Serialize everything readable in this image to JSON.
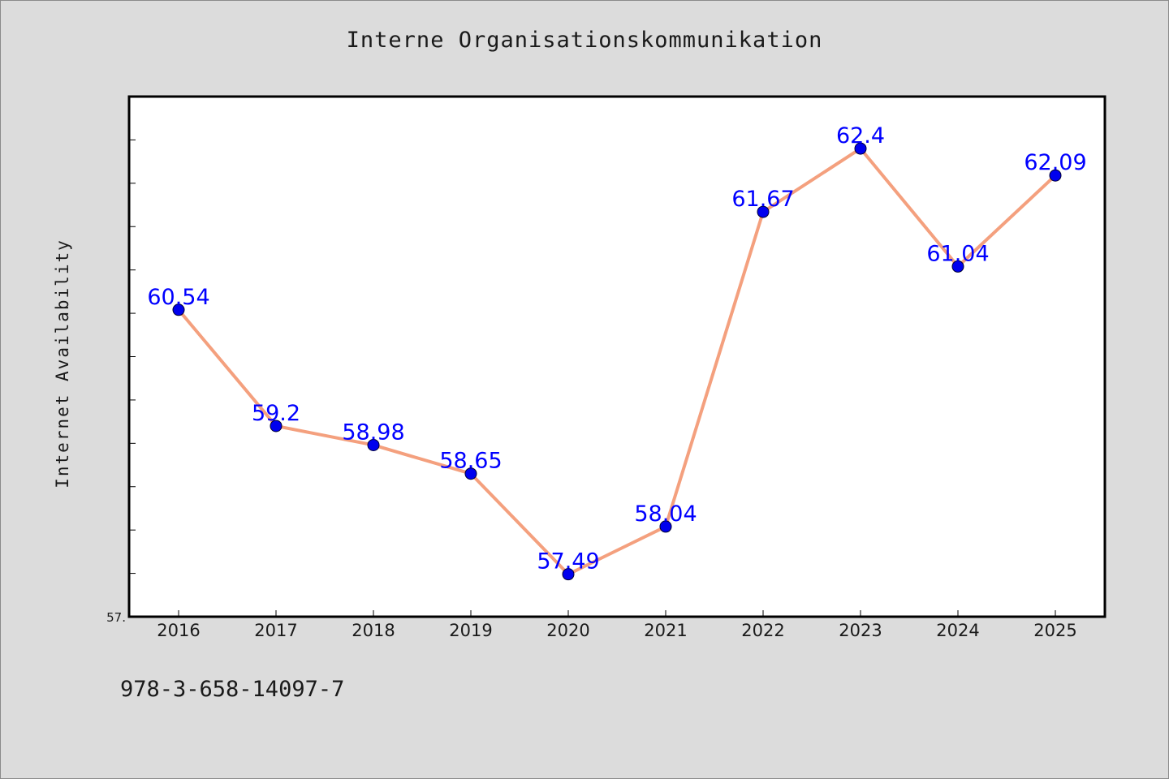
{
  "chart_data": {
    "type": "line",
    "title": "Interne Organisationskommunikation",
    "xlabel": "",
    "ylabel": "Internet Availability",
    "categories": [
      "2016",
      "2017",
      "2018",
      "2019",
      "2020",
      "2021",
      "2022",
      "2023",
      "2024",
      "2025"
    ],
    "series": [
      {
        "values": [
          60.54,
          59.2,
          58.98,
          58.65,
          57.49,
          58.04,
          61.67,
          62.4,
          61.04,
          62.09
        ],
        "labels": [
          "60.54",
          "59.2",
          "58.98",
          "58.65",
          "57.49",
          "58.04",
          "61.67",
          "62.4",
          "61.04",
          "62.09"
        ]
      }
    ],
    "ylim": [
      57,
      63
    ],
    "y_tick_label": "57.",
    "y_minor_ticks": [
      57.5,
      58,
      58.5,
      59,
      59.5,
      60,
      60.5,
      61,
      61.5,
      62,
      62.5,
      63
    ],
    "grid": false,
    "legend": "none",
    "colors": {
      "line": "#f4a07e",
      "marker": "#0000ee",
      "data_label": "#0000ff",
      "background": "#dcdcdc",
      "plot_background": "#ffffff"
    }
  },
  "footer": {
    "code": "978-3-658-14097-7"
  }
}
